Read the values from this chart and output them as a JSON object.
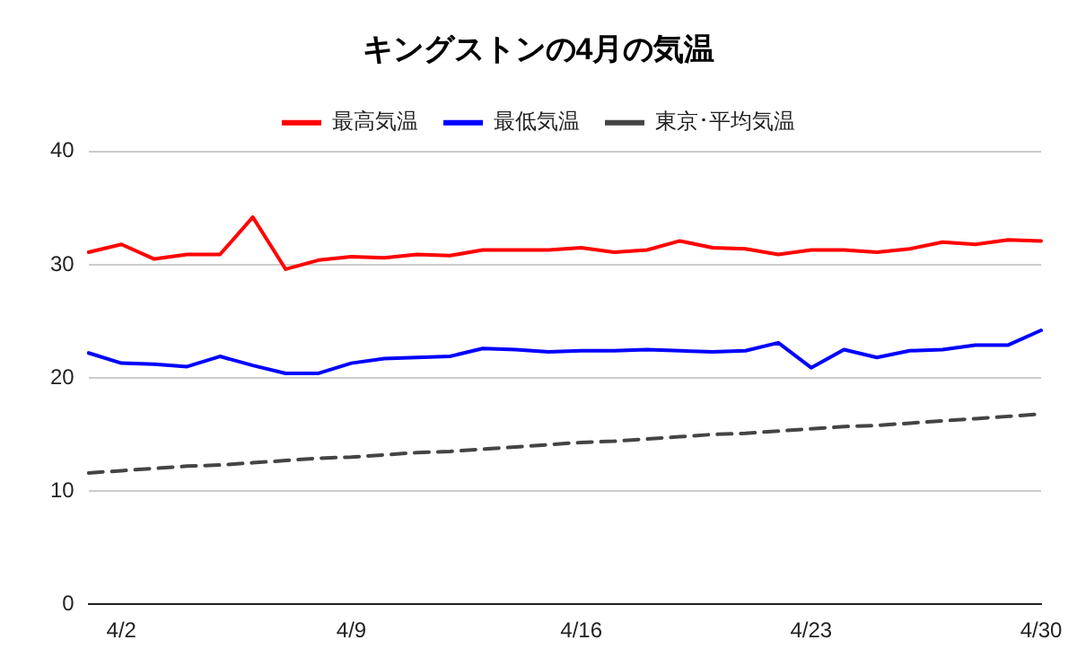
{
  "chart_data": {
    "type": "line",
    "title": "キングストンの4月の気温",
    "categories": [
      null,
      "4/2",
      null,
      null,
      null,
      null,
      null,
      null,
      "4/9",
      null,
      null,
      null,
      null,
      null,
      null,
      "4/16",
      null,
      null,
      null,
      null,
      null,
      null,
      "4/23",
      null,
      null,
      null,
      null,
      null,
      null,
      "4/30"
    ],
    "series": [
      {
        "name": "最高気温",
        "color": "#ff0000",
        "values": [
          31.1,
          31.8,
          30.5,
          30.9,
          30.9,
          34.2,
          29.6,
          30.4,
          30.7,
          30.6,
          30.9,
          30.8,
          31.3,
          31.3,
          31.3,
          31.5,
          31.1,
          31.3,
          32.1,
          31.5,
          31.4,
          30.9,
          31.3,
          31.3,
          31.1,
          31.4,
          32.0,
          31.8,
          32.2,
          32.1
        ]
      },
      {
        "name": "最低気温",
        "color": "#0000ff",
        "values": [
          22.2,
          21.3,
          21.2,
          21.0,
          21.9,
          21.1,
          20.4,
          20.4,
          21.3,
          21.7,
          21.8,
          21.9,
          22.6,
          22.5,
          22.3,
          22.4,
          22.4,
          22.5,
          22.4,
          22.3,
          22.4,
          23.1,
          20.9,
          22.5,
          21.8,
          22.4,
          22.5,
          22.9,
          22.9,
          24.2
        ]
      },
      {
        "name": "東京･平均気温",
        "color": "#444444",
        "line_style": "dashed",
        "values": [
          11.6,
          11.8,
          12.0,
          12.2,
          12.3,
          12.5,
          12.7,
          12.9,
          13.0,
          13.2,
          13.4,
          13.5,
          13.7,
          13.9,
          14.1,
          14.3,
          14.4,
          14.6,
          14.8,
          15.0,
          15.1,
          15.3,
          15.5,
          15.7,
          15.8,
          16.0,
          16.2,
          16.4,
          16.6,
          16.8
        ]
      }
    ],
    "ylim": [
      0,
      40
    ],
    "yticks": [
      0,
      10,
      20,
      30,
      40
    ],
    "grid": "y",
    "legend": "top",
    "marker": "none"
  }
}
